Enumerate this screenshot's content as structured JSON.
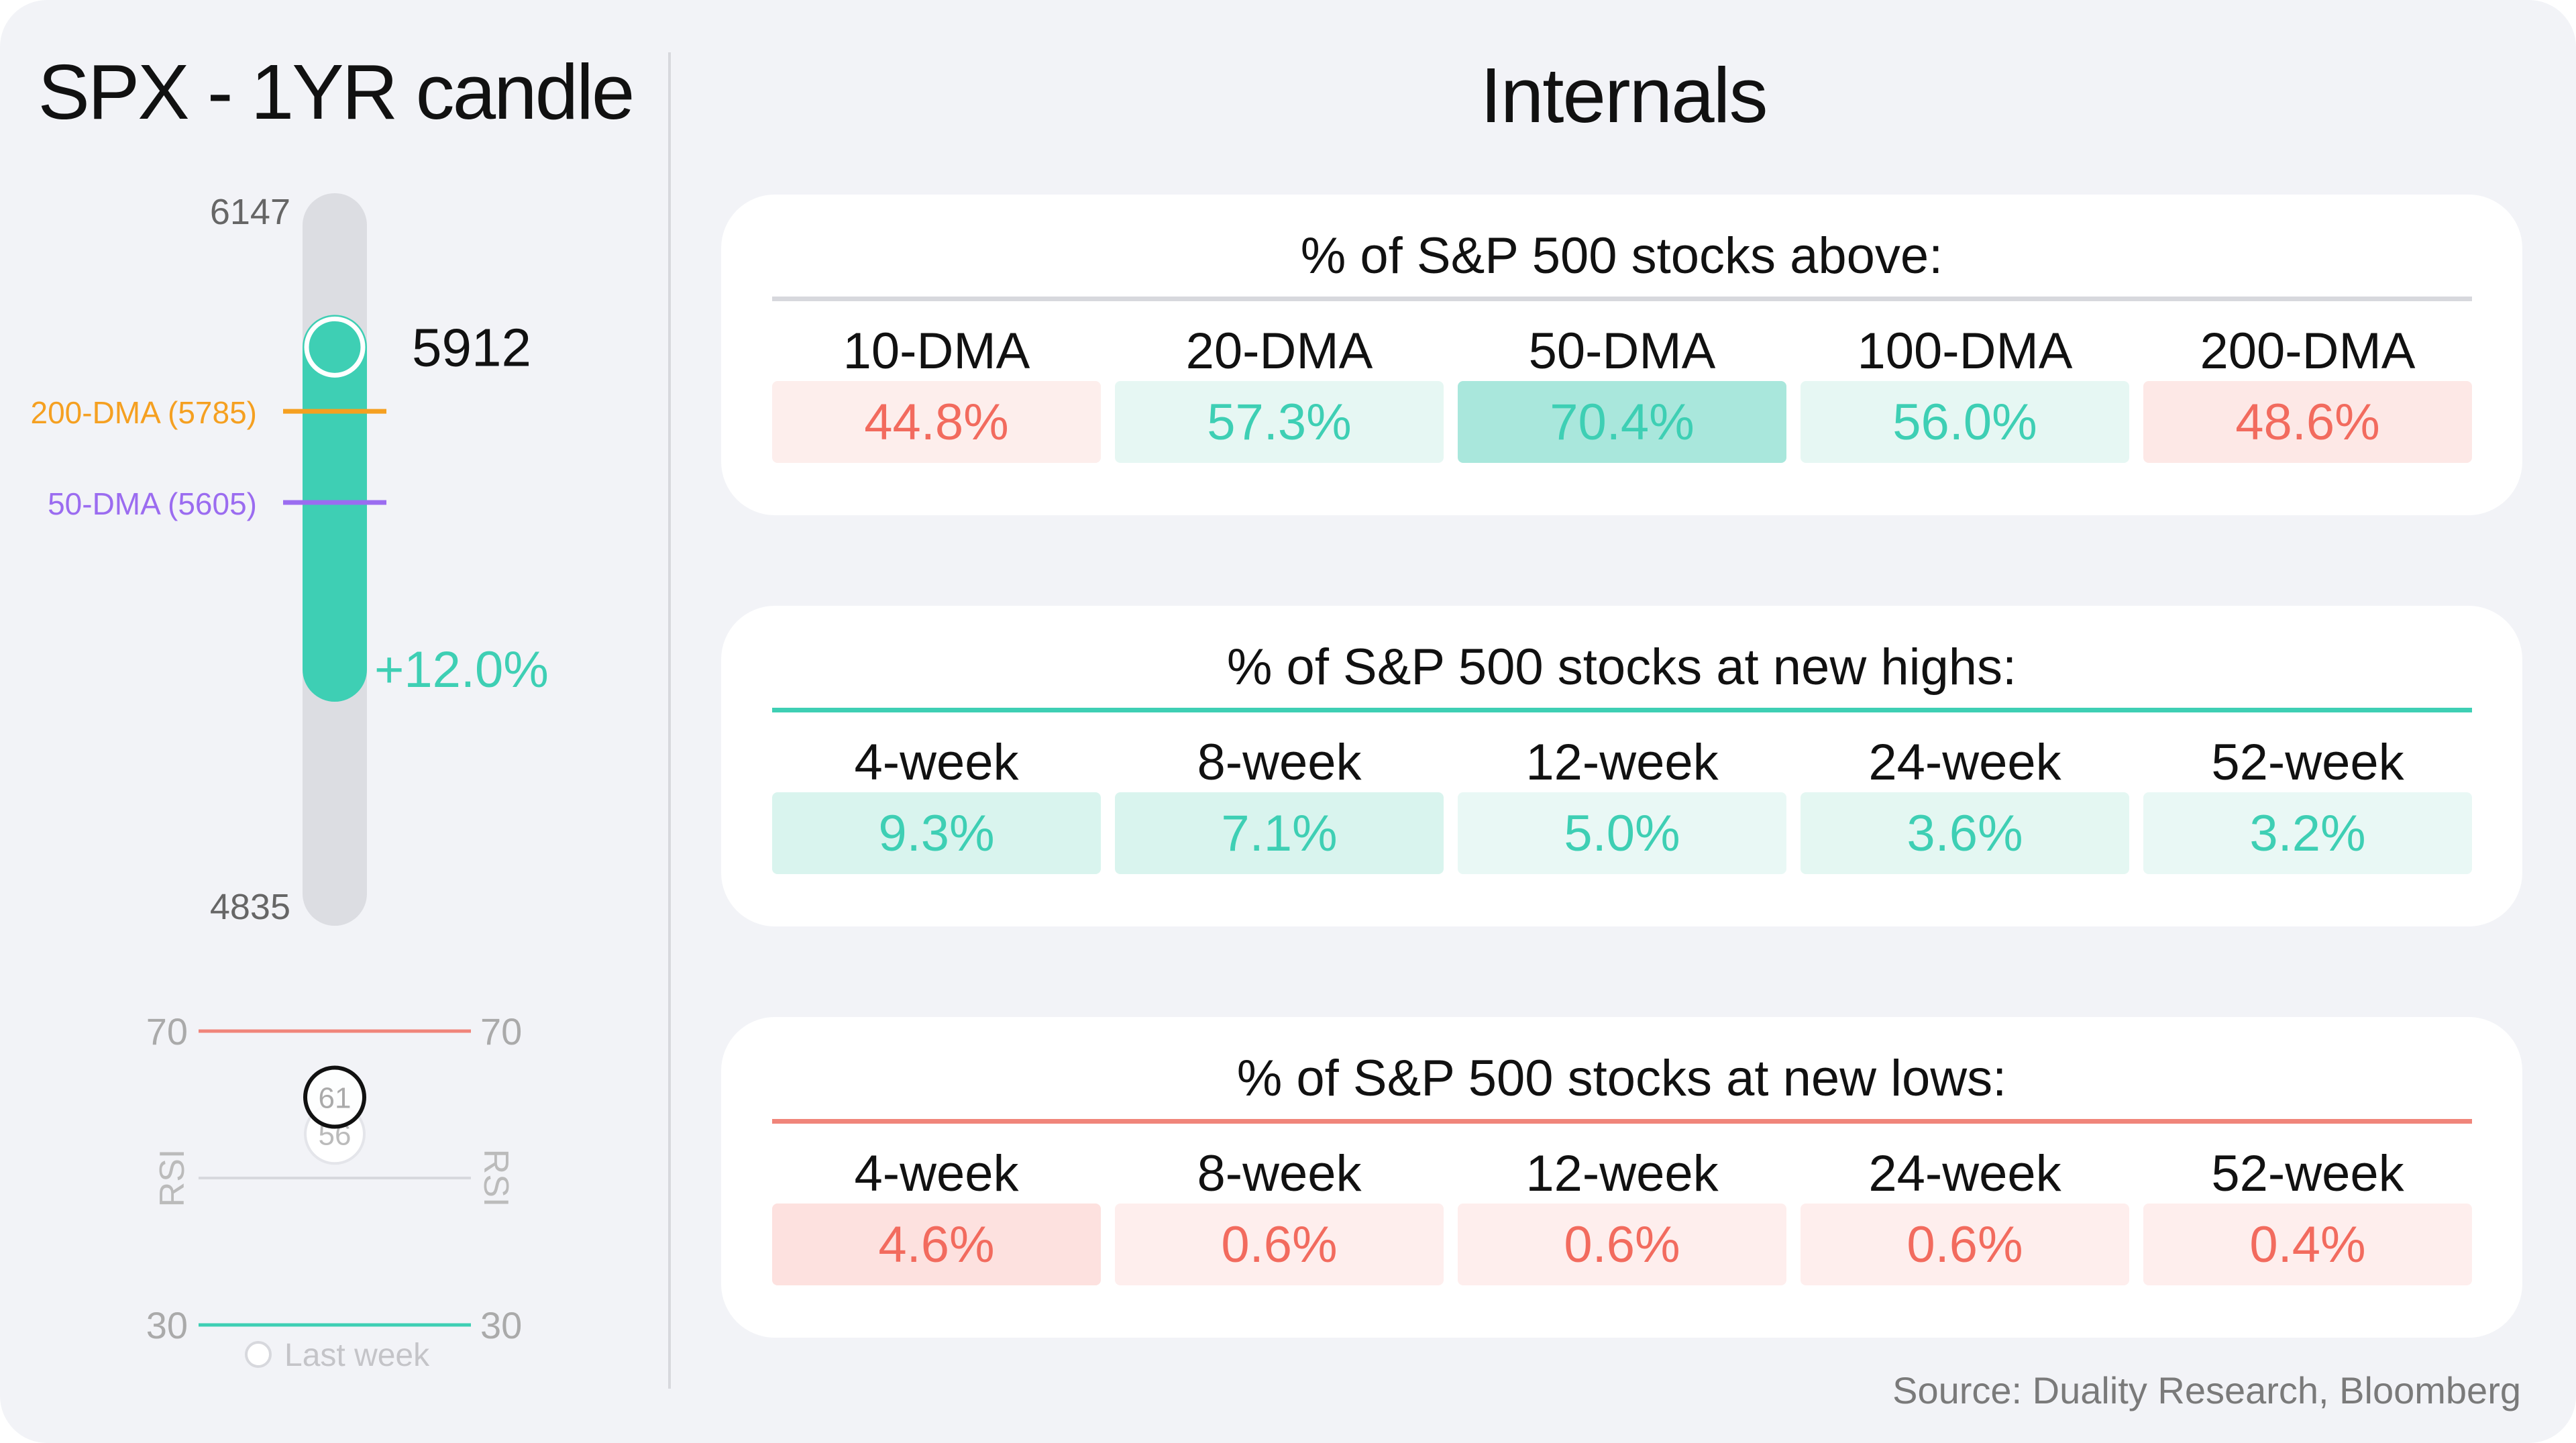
{
  "left": {
    "title": "SPX - 1YR candle"
  },
  "internals": {
    "title": "Internals"
  },
  "chart_data": [
    {
      "type": "range-candle",
      "title": "SPX - 1YR candle",
      "range": {
        "high": 6147,
        "low": 4835
      },
      "range_labels": [
        "6147",
        "4835"
      ],
      "candle": {
        "open": 5275,
        "close": 5912,
        "close_label": "5912",
        "change_label": "+12.0%"
      },
      "levels": [
        {
          "label": "200-DMA (5785)",
          "value": 5785,
          "color": "#f5a021"
        },
        {
          "label": "50-DMA (5605)",
          "value": 5605,
          "color": "#9b6cf0"
        }
      ],
      "colors": {
        "candle": "#3ecfb4",
        "track": "#dcdde2"
      }
    },
    {
      "type": "rsi-gauge",
      "ylim": [
        30,
        70
      ],
      "upper_labels": [
        "70",
        "70"
      ],
      "lower_labels": [
        "30",
        "30"
      ],
      "axis_labels": [
        "RSI",
        "RSI"
      ],
      "current": {
        "value": 61,
        "label": "61"
      },
      "last_week": {
        "value": 56,
        "label": "56"
      },
      "legend_label": "Last week",
      "colors": {
        "upper": "#f0857a",
        "lower": "#3ecfb4",
        "mid": "#d7d8dd"
      }
    },
    {
      "type": "table",
      "title": "% of S&P 500 stocks above:",
      "accent": "#d7d8dd",
      "columns": [
        "10-DMA",
        "20-DMA",
        "50-DMA",
        "100-DMA",
        "200-DMA"
      ],
      "values": [
        "44.8%",
        "57.3%",
        "70.4%",
        "56.0%",
        "48.6%"
      ],
      "fills": [
        "#fdeeec",
        "#e6f7f3",
        "#a9e7dc",
        "#e6f7f3",
        "#fde8e6"
      ],
      "text_colors": [
        "#f26b5e",
        "#3ecfb4",
        "#3ecfb4",
        "#3ecfb4",
        "#f26b5e"
      ]
    },
    {
      "type": "table",
      "title": "% of S&P 500 stocks at new highs:",
      "accent": "#3ecfb4",
      "columns": [
        "4-week",
        "8-week",
        "12-week",
        "24-week",
        "52-week"
      ],
      "values": [
        "9.3%",
        "7.1%",
        "5.0%",
        "3.6%",
        "3.2%"
      ],
      "fills": [
        "#d9f4ee",
        "#d9f4ee",
        "#e9f8f5",
        "#e4f7f2",
        "#e9f8f5"
      ],
      "text_colors": [
        "#3ecfb4",
        "#3ecfb4",
        "#3ecfb4",
        "#3ecfb4",
        "#3ecfb4"
      ]
    },
    {
      "type": "table",
      "title": "% of S&P 500 stocks at new lows:",
      "accent": "#f0857a",
      "columns": [
        "4-week",
        "8-week",
        "12-week",
        "24-week",
        "52-week"
      ],
      "values": [
        "4.6%",
        "0.6%",
        "0.6%",
        "0.6%",
        "0.4%"
      ],
      "fills": [
        "#fde1df",
        "#feeeed",
        "#feeeed",
        "#feeeed",
        "#feeeed"
      ],
      "text_colors": [
        "#f26b5e",
        "#f26b5e",
        "#f26b5e",
        "#f26b5e",
        "#f26b5e"
      ]
    }
  ],
  "footer": {
    "source": "Source: Duality Research, Bloomberg"
  }
}
